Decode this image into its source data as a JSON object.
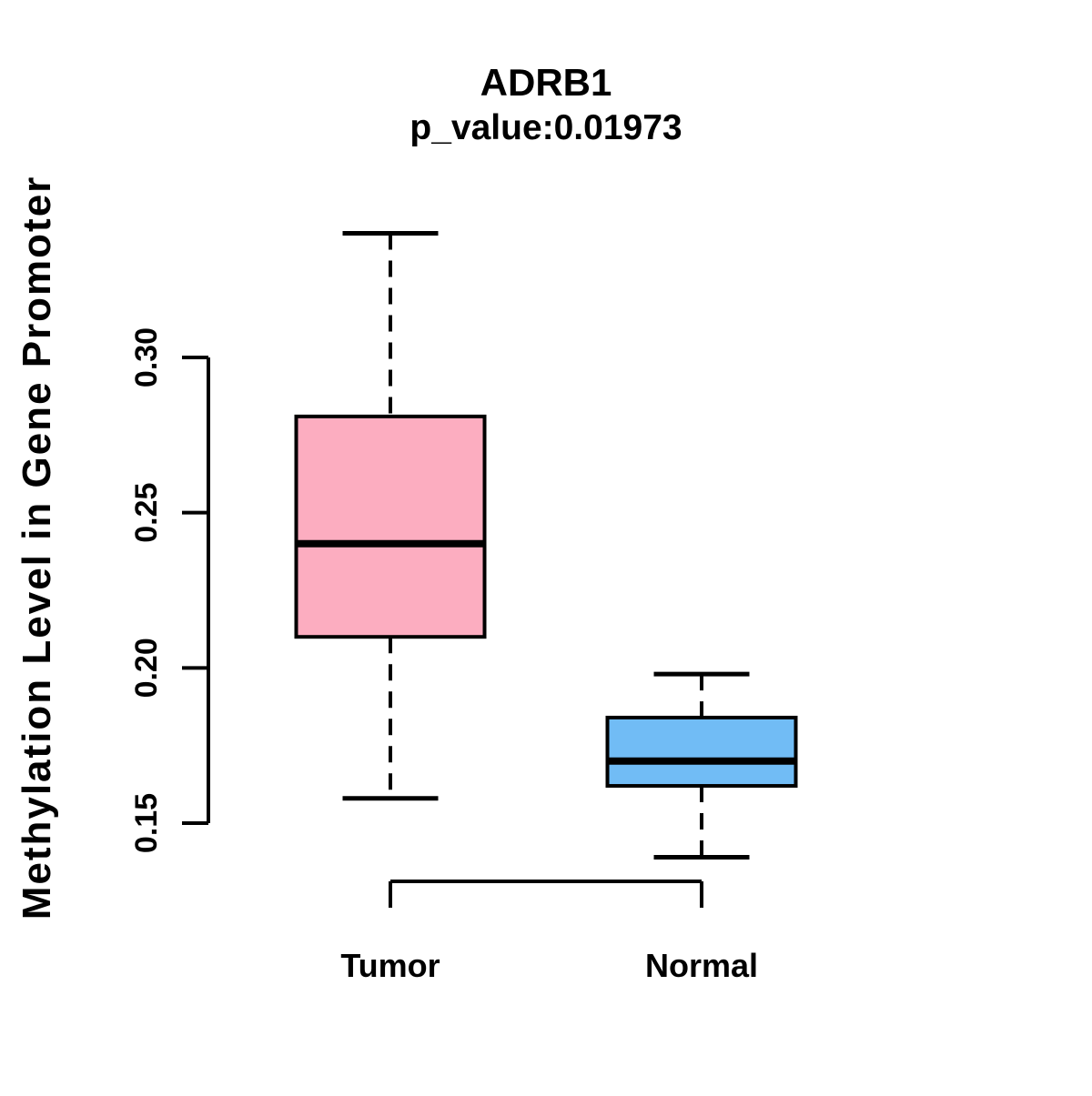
{
  "title": {
    "gene": "ADRB1",
    "pvalue_line": "p_value:0.01973"
  },
  "y_axis": {
    "title": "Methylation Level in Gene Promoter",
    "tick_labels": [
      "0.15",
      "0.20",
      "0.25",
      "0.30"
    ]
  },
  "x_axis": {
    "labels": [
      "Tumor",
      "Normal"
    ]
  },
  "colors": {
    "tumor_box_fill": "#FCADC0",
    "normal_box_fill": "#71BCF5",
    "stroke": "#000000",
    "background": "#FFFFFF"
  },
  "chart_data": {
    "type": "boxplot",
    "title": "ADRB1",
    "subtitle": "p_value:0.01973",
    "p_value": 0.01973,
    "ylabel": "Methylation Level in Gene Promoter",
    "xlabel": "",
    "categories": [
      "Tumor",
      "Normal"
    ],
    "yticks": [
      0.15,
      0.2,
      0.25,
      0.3
    ],
    "ylim": [
      0.125,
      0.35
    ],
    "grid": false,
    "legend": "none",
    "series": [
      {
        "name": "Tumor",
        "color": "#FCADC0",
        "whisker_low": 0.158,
        "q1": 0.21,
        "median": 0.24,
        "q3": 0.281,
        "whisker_high": 0.34
      },
      {
        "name": "Normal",
        "color": "#71BCF5",
        "whisker_low": 0.139,
        "q1": 0.162,
        "median": 0.17,
        "q3": 0.184,
        "whisker_high": 0.198
      }
    ]
  }
}
